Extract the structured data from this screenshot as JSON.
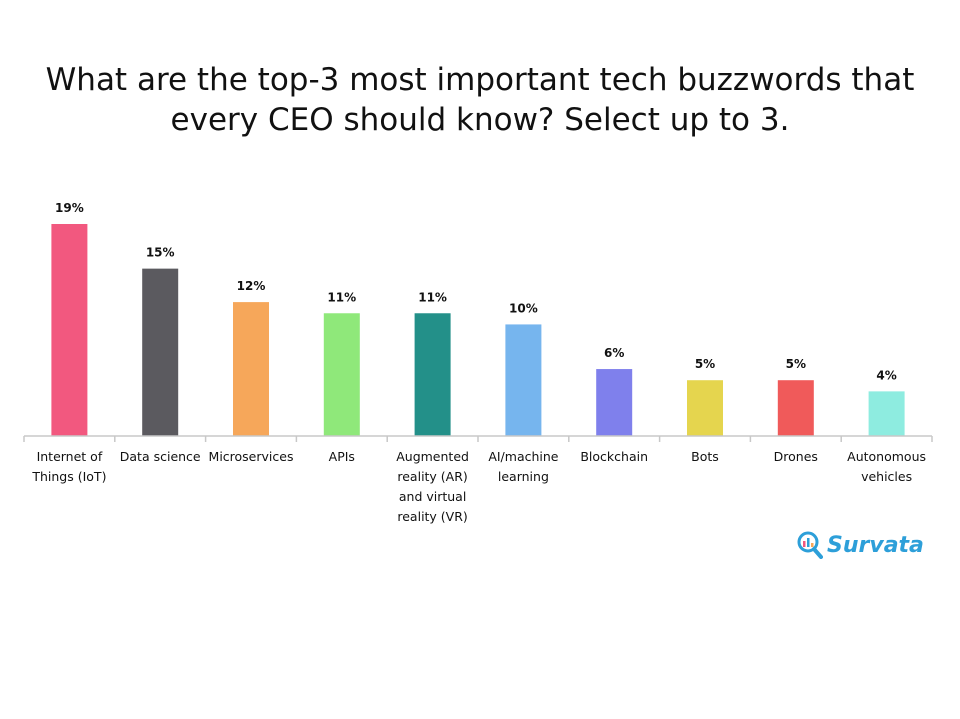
{
  "chart_data": {
    "type": "bar",
    "title_lines": [
      "What are the top-3 most important tech buzzwords that",
      "every CEO should know? Select up to 3."
    ],
    "categories": [
      [
        "Internet of",
        "Things (IoT)"
      ],
      [
        "Data science"
      ],
      [
        "Microservices"
      ],
      [
        "APIs"
      ],
      [
        "Augmented",
        "reality (AR)",
        "and virtual",
        "reality (VR)"
      ],
      [
        "AI/machine",
        "learning"
      ],
      [
        "Blockchain"
      ],
      [
        "Bots"
      ],
      [
        "Drones"
      ],
      [
        "Autonomous",
        "vehicles"
      ]
    ],
    "values": [
      19,
      15,
      12,
      11,
      11,
      10,
      6,
      5,
      5,
      4
    ],
    "value_labels": [
      "19%",
      "15%",
      "12%",
      "11%",
      "11%",
      "10%",
      "6%",
      "5%",
      "5%",
      "4%"
    ],
    "colors": [
      "#f2587f",
      "#5b5a5f",
      "#f6a75a",
      "#8fe87a",
      "#239089",
      "#76b5ee",
      "#7f80ec",
      "#e5d54e",
      "#f05a5a",
      "#8eece0"
    ],
    "ylim": [
      0,
      19
    ],
    "grid": false,
    "legend": "none"
  },
  "brand": {
    "name": "Survata",
    "color": "#2d9fd9"
  }
}
